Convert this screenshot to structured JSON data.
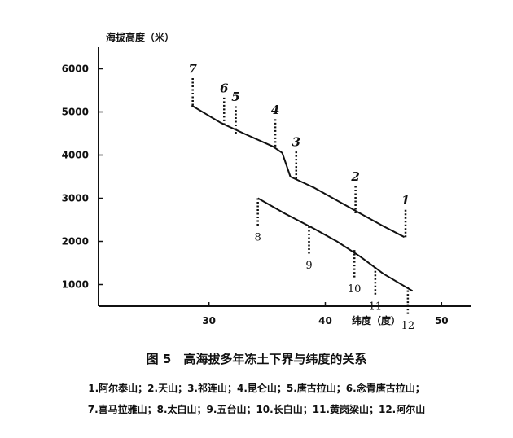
{
  "caption": "图 5　高海拔多年冻土下界与纬度的关系",
  "legend_lines": [
    "1.阿尔泰山；2.天山；3.祁连山；4.昆仑山；5.唐古拉山；6.念青唐古拉山；",
    "7.喜马拉雅山；8.太白山；9.五台山；10.长白山；11.黄岗梁山；12.阿尔山"
  ],
  "chart_data": {
    "type": "line",
    "ylabel": "海拔高度（米）",
    "xlabel": "纬度（度）",
    "y_ticks": [
      "6000",
      "5000",
      "4000",
      "3000",
      "2000",
      "1000"
    ],
    "x_ticks": [
      "30",
      "40",
      "50"
    ],
    "xlim": [
      20.5,
      52.5
    ],
    "ylim": [
      500,
      6500
    ],
    "series": [
      {
        "values": [
          [
            28.5,
            5150
          ],
          [
            31,
            4750
          ],
          [
            33,
            4500
          ],
          [
            35.5,
            4200
          ],
          [
            36.3,
            4050
          ],
          [
            37,
            3500
          ],
          [
            39,
            3250
          ],
          [
            41,
            2950
          ],
          [
            43,
            2650
          ],
          [
            45,
            2350
          ],
          [
            46.8,
            2100
          ]
        ]
      },
      {
        "values": [
          [
            34.2,
            3000
          ],
          [
            36.5,
            2650
          ],
          [
            39,
            2300
          ],
          [
            41,
            2000
          ],
          [
            43,
            1650
          ],
          [
            45,
            1250
          ],
          [
            47.5,
            850
          ]
        ]
      }
    ],
    "markers": [
      {
        "label": "1",
        "x": 46.9,
        "y": 2100,
        "dir": "up"
      },
      {
        "label": "2",
        "x": 42.6,
        "y": 2650,
        "dir": "up"
      },
      {
        "label": "3",
        "x": 37.5,
        "y": 3450,
        "dir": "up"
      },
      {
        "label": "4",
        "x": 35.7,
        "y": 4200,
        "dir": "up"
      },
      {
        "label": "5",
        "x": 32.3,
        "y": 4500,
        "dir": "up"
      },
      {
        "label": "6",
        "x": 31.3,
        "y": 4700,
        "dir": "up"
      },
      {
        "label": "7",
        "x": 28.6,
        "y": 5150,
        "dir": "up"
      },
      {
        "label": "8",
        "x": 34.2,
        "y": 3000,
        "dir": "down"
      },
      {
        "label": "9",
        "x": 38.6,
        "y": 2350,
        "dir": "down"
      },
      {
        "label": "10",
        "x": 42.5,
        "y": 1800,
        "dir": "down"
      },
      {
        "label": "11",
        "x": 44.3,
        "y": 1400,
        "dir": "down"
      },
      {
        "label": "12",
        "x": 47.1,
        "y": 950,
        "dir": "down"
      }
    ]
  }
}
